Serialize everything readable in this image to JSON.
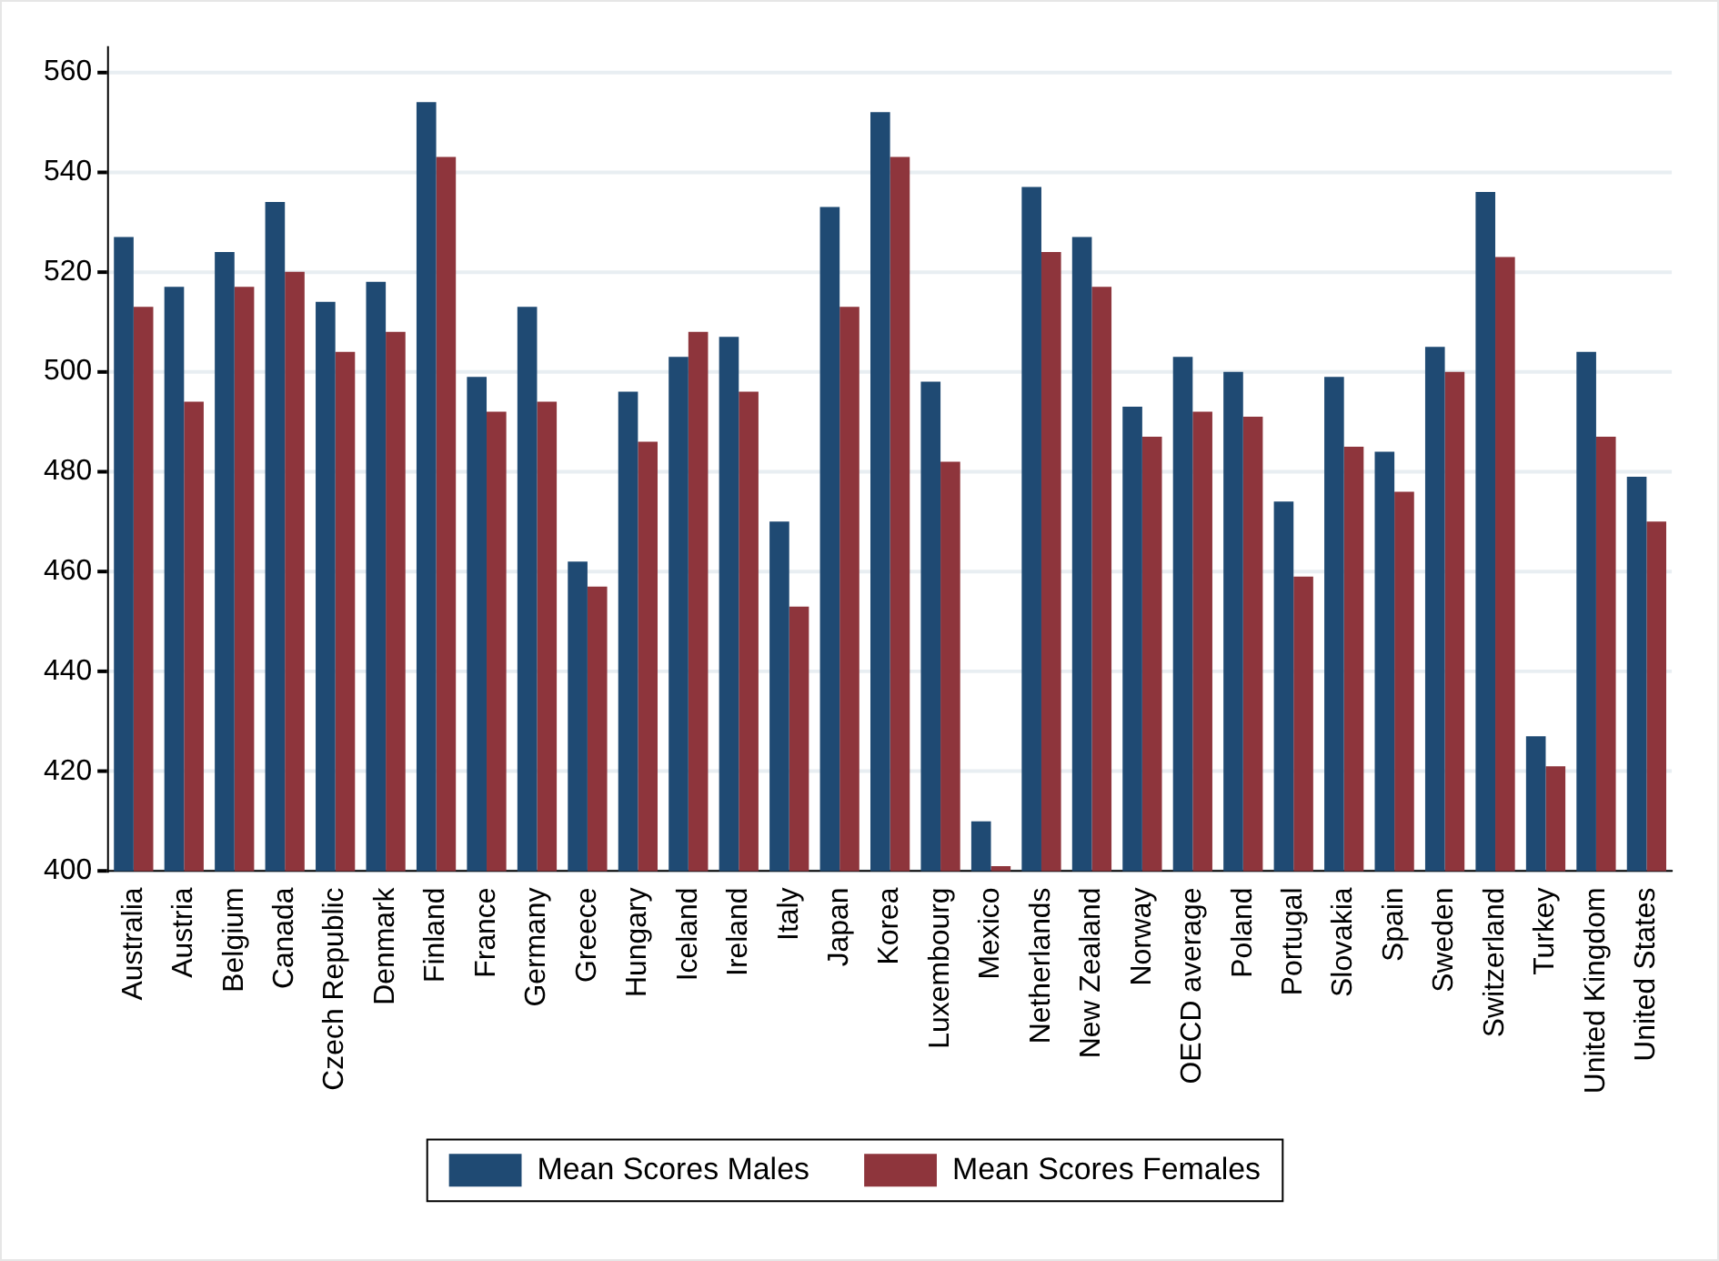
{
  "chart_data": {
    "type": "bar",
    "categories": [
      "Australia",
      "Austria",
      "Belgium",
      "Canada",
      "Czech Republic",
      "Denmark",
      "Finland",
      "France",
      "Germany",
      "Greece",
      "Hungary",
      "Iceland",
      "Ireland",
      "Italy",
      "Japan",
      "Korea",
      "Luxembourg",
      "Mexico",
      "Netherlands",
      "New Zealand",
      "Norway",
      "OECD average",
      "Poland",
      "Portugal",
      "Slovakia",
      "Spain",
      "Sweden",
      "Switzerland",
      "Turkey",
      "United Kingdom",
      "United States"
    ],
    "series": [
      {
        "name": "Mean Scores Males",
        "color": "#1f4a73",
        "values": [
          527,
          517,
          524,
          534,
          514,
          518,
          554,
          499,
          513,
          462,
          496,
          503,
          507,
          470,
          533,
          552,
          498,
          410,
          537,
          527,
          493,
          503,
          500,
          474,
          499,
          484,
          505,
          536,
          427,
          504,
          479
        ]
      },
      {
        "name": "Mean Scores Females",
        "color": "#8e353c",
        "values": [
          513,
          494,
          517,
          520,
          504,
          508,
          543,
          492,
          494,
          457,
          486,
          508,
          496,
          453,
          513,
          543,
          482,
          401,
          524,
          517,
          487,
          492,
          491,
          459,
          485,
          476,
          500,
          523,
          421,
          487,
          470
        ]
      }
    ],
    "ylim": [
      400,
      565
    ],
    "yticks": [
      400,
      420,
      440,
      460,
      480,
      500,
      520,
      540,
      560
    ],
    "grid": "y",
    "legend": "bottom"
  }
}
